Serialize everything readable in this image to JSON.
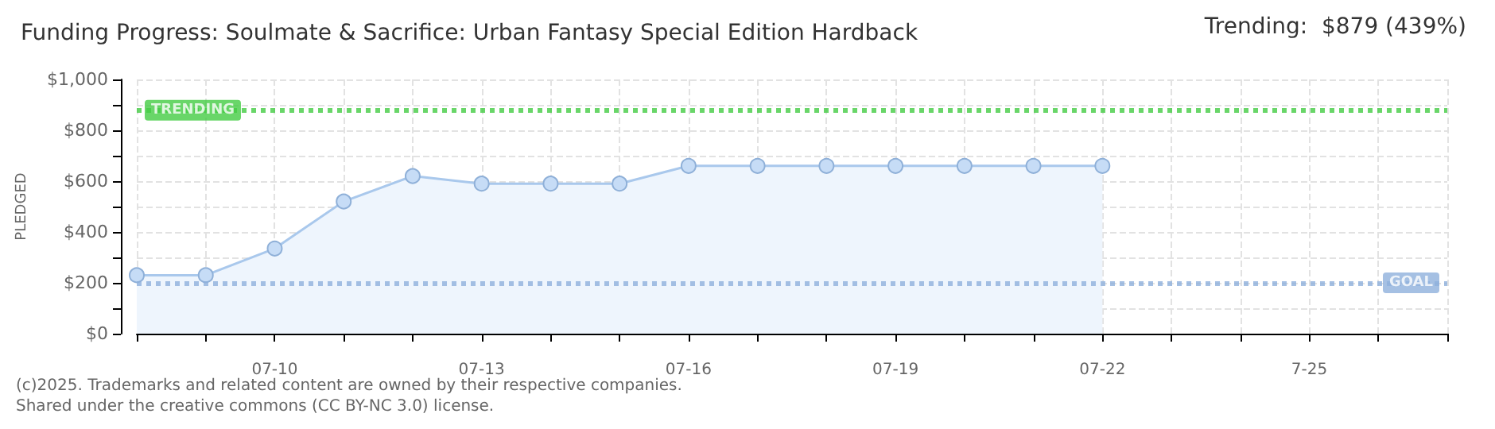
{
  "chart_data": {
    "type": "area",
    "title": "Funding Progress: Soulmate & Sacrifice: Urban Fantasy Special Edition Hardback",
    "ylabel": "PLEDGED",
    "annotations": [
      "Trending:  $879 (439%)",
      "(c)2025. Trademarks and related content are owned by their respective companies.",
      "Shared under the creative commons (CC BY-NC 3.0) license."
    ],
    "categories": [
      null,
      null,
      "07-10",
      null,
      null,
      "07-13",
      null,
      null,
      "07-16",
      null,
      null,
      "07-19",
      null,
      null,
      "07-22",
      null,
      null,
      "7-25",
      null,
      null
    ],
    "series": [
      {
        "color": "#a9c8ec",
        "values": [
          230,
          230,
          335,
          520,
          620,
          590,
          590,
          590,
          660,
          660,
          660,
          660,
          660,
          660,
          660,
          null,
          null,
          null,
          null,
          null
        ]
      }
    ],
    "ylim": [
      0,
      1000
    ],
    "yticks": [
      {
        "value": 0,
        "label": "$0"
      },
      {
        "value": 100,
        "label": null
      },
      {
        "value": 200,
        "label": "$200"
      },
      {
        "value": 300,
        "label": null
      },
      {
        "value": 400,
        "label": "$400"
      },
      {
        "value": 500,
        "label": null
      },
      {
        "value": 600,
        "label": "$600"
      },
      {
        "value": 700,
        "label": null
      },
      {
        "value": 800,
        "label": "$800"
      },
      {
        "value": 900,
        "label": null
      },
      {
        "value": 1000,
        "label": "$1,000"
      }
    ],
    "ref_lines": [
      {
        "axis": "y",
        "value": 879,
        "label": "TRENDING",
        "color": "#44cc44",
        "line_style": "dotted"
      },
      {
        "axis": "y",
        "value": 200,
        "label": "GOAL",
        "color": "#8fb0dc",
        "line_style": "dotted"
      }
    ],
    "grid": true,
    "marker": "circle",
    "line_style": "solid"
  }
}
